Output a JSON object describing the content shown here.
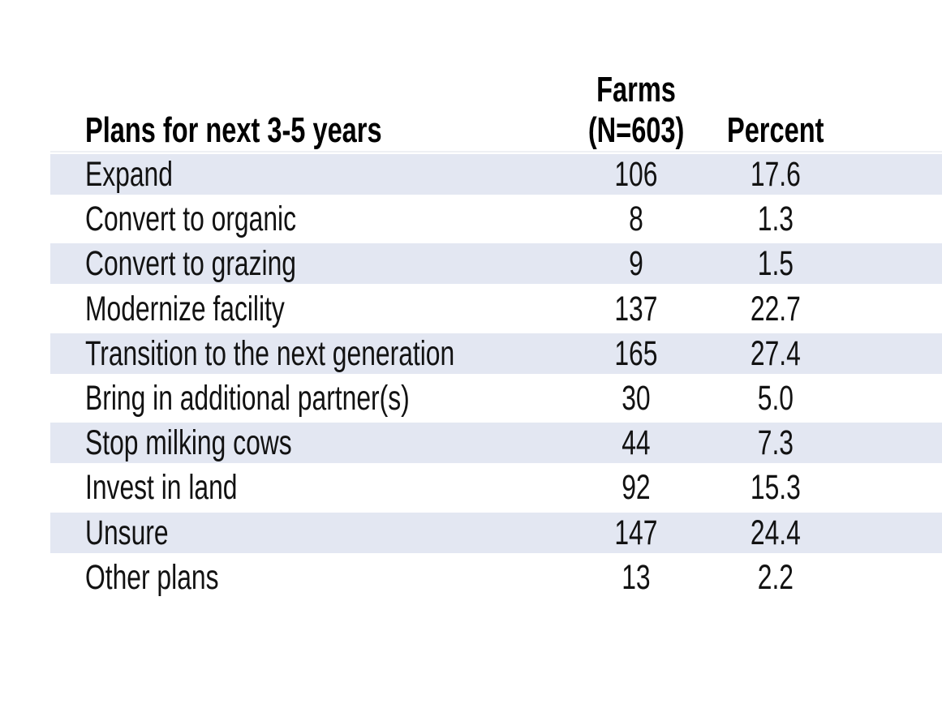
{
  "chart_data": {
    "type": "table",
    "title": "",
    "columns": [
      "Plans for next 3-5 years",
      "Farms (N=603)",
      "Percent"
    ],
    "header": {
      "col1": "Plans for next 3-5 years",
      "col2_line1": "Farms",
      "col2_line2": "(N=603)",
      "col3": "Percent"
    },
    "n_total": 603,
    "rows": [
      {
        "label": "Expand",
        "farms": "106",
        "percent": "17.6"
      },
      {
        "label": "Convert to organic",
        "farms": "8",
        "percent": "1.3"
      },
      {
        "label": "Convert to grazing",
        "farms": "9",
        "percent": "1.5"
      },
      {
        "label": "Modernize facility",
        "farms": "137",
        "percent": "22.7"
      },
      {
        "label": "Transition to the next generation",
        "farms": "165",
        "percent": "27.4"
      },
      {
        "label": "Bring in additional partner(s)",
        "farms": "30",
        "percent": "5.0"
      },
      {
        "label": "Stop milking cows",
        "farms": "44",
        "percent": "7.3"
      },
      {
        "label": "Invest in land",
        "farms": "92",
        "percent": "15.3"
      },
      {
        "label": "Unsure",
        "farms": "147",
        "percent": "24.4"
      },
      {
        "label": "Other plans",
        "farms": "13",
        "percent": "2.2"
      }
    ],
    "layout": {
      "row_band_color": "#e3e7f2",
      "text_color": "#121212",
      "background_color": "#ffffff",
      "banded_row_indices": [
        0,
        2,
        4,
        6,
        8
      ]
    }
  }
}
